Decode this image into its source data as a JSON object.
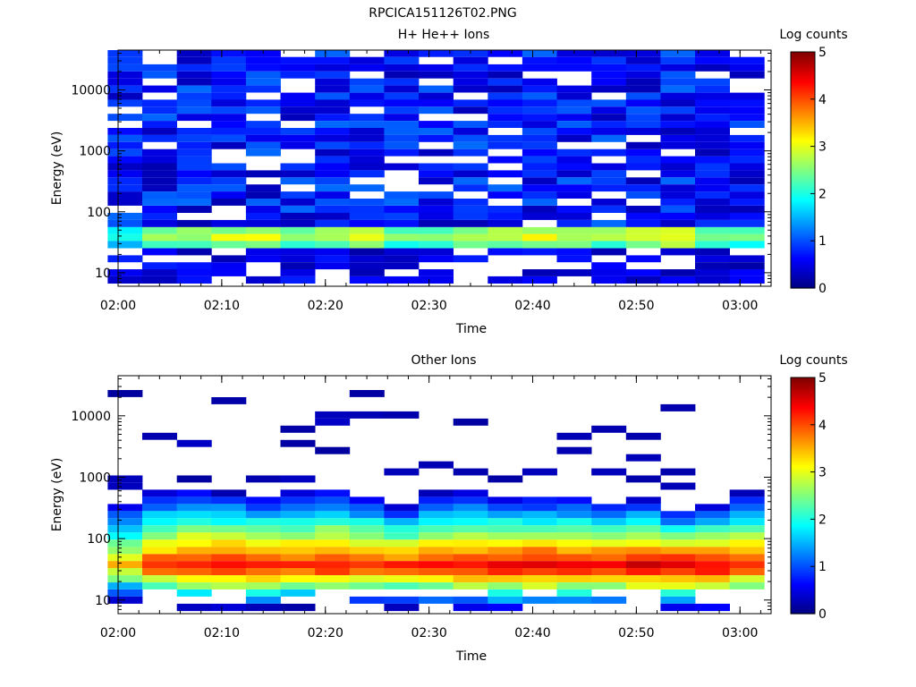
{
  "figure_title": "RPCICA151126T02.PNG",
  "chart_data": [
    {
      "type": "heatmap",
      "title": "H+ He++ Ions",
      "xlabel": "Time",
      "ylabel": "Energy (eV)",
      "colorbar_label": "Log counts",
      "colorbar_ticks": [
        "0",
        "1",
        "2",
        "3",
        "4",
        "5"
      ],
      "colorbar_range": [
        0,
        5
      ],
      "xlim": [
        "02:00",
        "03:03"
      ],
      "x_ticks": [
        "02:00",
        "02:10",
        "02:20",
        "02:30",
        "02:40",
        "02:50",
        "03:00"
      ],
      "y_scale": "log",
      "ylim": [
        6,
        45000
      ],
      "y_ticks": [
        "10",
        "100",
        "1000",
        "10000"
      ],
      "colormap": "jet",
      "time_columns": [
        "02:00:40",
        "02:04:00",
        "02:07:20",
        "02:10:40",
        "02:14:00",
        "02:17:20",
        "02:20:40",
        "02:24:00",
        "02:27:20",
        "02:30:40",
        "02:34:00",
        "02:37:20",
        "02:40:40",
        "02:44:00",
        "02:47:20",
        "02:50:40",
        "02:54:00",
        "02:57:20",
        "03:00:40"
      ],
      "energy_rows_eV": [
        40000,
        30000,
        23000,
        17600,
        13500,
        10300,
        7900,
        6050,
        4630,
        3550,
        2720,
        2080,
        1590,
        1220,
        935,
        716,
        548,
        420,
        321,
        246,
        188,
        144,
        110,
        84,
        64,
        49,
        38,
        29,
        22,
        17,
        13,
        10,
        7.6
      ],
      "pattern": {
        "high_energy_level": 0.7,
        "peak_energy_eV": 40,
        "peak_level": 2.6,
        "low_energy_level": 0.5
      },
      "column_peak_levels": [
        2.2,
        2.7,
        2.8,
        3.0,
        3.1,
        2.7,
        2.9,
        3.0,
        2.7,
        2.7,
        2.8,
        3.0,
        3.1,
        2.9,
        2.8,
        3.1,
        3.2,
        2.7,
        2.6
      ]
    },
    {
      "type": "heatmap",
      "title": "Other Ions",
      "xlabel": "Time",
      "ylabel": "Energy (eV)",
      "colorbar_label": "Log counts",
      "colorbar_ticks": [
        "0",
        "1",
        "2",
        "3",
        "4",
        "5"
      ],
      "colorbar_range": [
        0,
        5
      ],
      "xlim": [
        "02:00",
        "03:03"
      ],
      "x_ticks": [
        "02:00",
        "02:10",
        "02:20",
        "02:30",
        "02:40",
        "02:50",
        "03:00"
      ],
      "y_scale": "log",
      "ylim": [
        6,
        45000
      ],
      "y_ticks": [
        "10",
        "100",
        "1000",
        "10000"
      ],
      "colormap": "jet",
      "time_columns": [
        "02:00:40",
        "02:04:00",
        "02:07:20",
        "02:10:40",
        "02:14:00",
        "02:17:20",
        "02:20:40",
        "02:24:00",
        "02:27:20",
        "02:30:40",
        "02:34:00",
        "02:37:20",
        "02:40:40",
        "02:44:00",
        "02:47:20",
        "02:50:40",
        "02:54:00",
        "02:57:20",
        "03:00:40"
      ],
      "energy_rows_eV": [
        40000,
        30000,
        23000,
        17600,
        13500,
        10300,
        7900,
        6050,
        4630,
        3550,
        2720,
        2080,
        1590,
        1220,
        935,
        716,
        548,
        420,
        321,
        246,
        188,
        144,
        110,
        84,
        64,
        49,
        38,
        29,
        22,
        17,
        13,
        10,
        7.6
      ],
      "pattern": {
        "peak_energy_eV": 35,
        "peak_level": 4.5,
        "spectrum_top_eV": [
          400,
          600,
          650,
          550,
          500,
          600,
          650,
          500,
          350,
          550,
          550,
          480,
          480,
          480,
          400,
          450,
          300,
          350,
          550
        ],
        "isolated_high_energy_counts_eV": [
          [
            26000,
            900,
            750
          ],
          [
            5000
          ],
          [
            4000,
            950
          ],
          [
            18000
          ],
          [
            1000
          ],
          [
            5500,
            4000,
            950
          ],
          [
            9000,
            3000
          ],
          [
            21000,
            10000
          ],
          [
            11000,
            1200
          ],
          [
            1500
          ],
          [
            7500,
            1100
          ],
          [
            950
          ],
          [
            1200
          ],
          [
            4600,
            2900
          ],
          [
            6000,
            1200
          ],
          [
            5000,
            2000,
            950
          ],
          [
            15000,
            1200,
            700
          ]
        ]
      },
      "column_peak_levels": [
        3.5,
        4.2,
        4.4,
        4.5,
        4.4,
        4.3,
        4.4,
        4.3,
        4.3,
        4.4,
        4.5,
        4.6,
        4.7,
        4.6,
        4.5,
        4.7,
        4.7,
        4.6,
        4.3
      ]
    }
  ]
}
